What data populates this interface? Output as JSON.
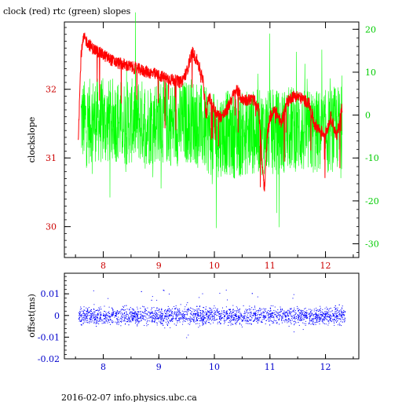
{
  "header": {
    "title": "clock (red) rtc (green) slopes"
  },
  "footer": {
    "text": "2016-02-07 info.physics.ubc.ca"
  },
  "chart_data": [
    {
      "type": "line",
      "title": "clock (red) rtc (green) slopes",
      "xlabel": "",
      "ylabel": "clockslope",
      "xlim": [
        7.3,
        12.6
      ],
      "ylim": [
        29.55,
        32.98
      ],
      "y2lim": [
        -33.2,
        21.7
      ],
      "grid": false,
      "legend": "none",
      "x_ticks": [
        "8",
        "9",
        "10",
        "11",
        "12"
      ],
      "y_ticks": [
        "30",
        "31",
        "32"
      ],
      "y2_ticks": [
        "-30",
        "-20",
        "-10",
        "0",
        "10",
        "20"
      ],
      "colors": {
        "red_series": "#ff0000",
        "green_series": "#00ff00",
        "axis_left": "#cc0000",
        "axis_right": "#00cc00",
        "axis_bottom": "#cc0000"
      },
      "series": [
        {
          "axis": "left",
          "color": "#ff0000",
          "x": [
            7.55,
            7.6,
            7.65,
            7.7,
            7.8,
            7.9,
            8.0,
            8.1,
            8.2,
            8.4,
            8.6,
            8.8,
            9.0,
            9.2,
            9.4,
            9.5,
            9.6,
            9.7,
            9.8,
            9.85,
            9.9,
            10.0,
            10.1,
            10.2,
            10.3,
            10.4,
            10.5,
            10.6,
            10.7,
            10.8,
            10.9,
            10.95,
            11.0,
            11.1,
            11.2,
            11.3,
            11.4,
            11.5,
            11.6,
            11.7,
            11.8,
            11.9,
            12.0,
            12.1,
            12.2,
            12.3
          ],
          "values": [
            31.3,
            32.5,
            32.75,
            32.7,
            32.6,
            32.55,
            32.5,
            32.45,
            32.4,
            32.35,
            32.3,
            32.25,
            32.2,
            32.15,
            32.1,
            32.25,
            32.55,
            32.4,
            32.1,
            31.6,
            31.9,
            31.7,
            31.6,
            31.65,
            31.85,
            32.0,
            31.85,
            31.85,
            31.85,
            31.7,
            30.5,
            31.3,
            31.6,
            31.7,
            31.5,
            31.8,
            31.9,
            31.9,
            31.85,
            31.8,
            31.5,
            31.4,
            31.35,
            31.6,
            31.3,
            31.75
          ]
        },
        {
          "axis": "right",
          "color": "#00ff00",
          "x": [
            7.6,
            7.7,
            7.8,
            7.9,
            8.0,
            8.2,
            8.4,
            8.6,
            8.8,
            9.0,
            9.2,
            9.4,
            9.6,
            9.8,
            10.0,
            10.2,
            10.4,
            10.6,
            10.8,
            11.0,
            11.2,
            11.4,
            11.6,
            11.8,
            12.0,
            12.2,
            12.3
          ],
          "values": [
            -1,
            -2,
            -1,
            -1,
            -2,
            -1,
            -2,
            -1,
            -2,
            -1,
            -2,
            -2,
            -1,
            -3,
            -5,
            -4,
            -5,
            -4,
            -4,
            -4,
            -4,
            -3,
            -4,
            -4,
            -4,
            -3,
            -3
          ]
        }
      ]
    },
    {
      "type": "scatter",
      "xlabel": "",
      "ylabel": "offset(ms)",
      "xlim": [
        7.3,
        12.6
      ],
      "ylim": [
        -0.02,
        0.0195
      ],
      "grid": false,
      "legend": "none",
      "x_ticks": [
        "8",
        "9",
        "10",
        "11",
        "12"
      ],
      "y_ticks": [
        "-0.02",
        "-0.01",
        "0",
        "0.01"
      ],
      "colors": {
        "points": "#0000ff",
        "axis": "#0000cc"
      },
      "series": [
        {
          "color": "#0000ff",
          "x_range": [
            7.55,
            12.35
          ],
          "center": 0,
          "spread": 0.003,
          "outliers_max": 0.016,
          "outliers_min": -0.011
        }
      ]
    }
  ]
}
